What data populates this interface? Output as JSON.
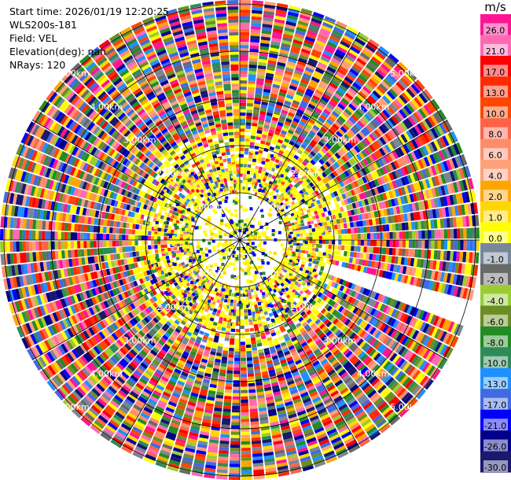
{
  "header": {
    "start_time": "Start time: 2026/01/19 12:20:25",
    "instrument": "WLS200s-181",
    "field": "Field: VEL",
    "elevation": "Elevation(deg): nan",
    "nrays": "NRays: 120"
  },
  "chart_data": {
    "type": "heatmap",
    "projection": "polar (PPI scan)",
    "field": "VEL",
    "rays": 120,
    "range_ring_labels": [
      "1.00km",
      "2.00km",
      "3.00km",
      "4.00km",
      "5.00km"
    ],
    "range_rings_km": [
      1,
      2,
      3,
      4,
      5
    ],
    "colorbar": {
      "unit": "m/s",
      "tick_labels": [
        "26.0",
        "21.0",
        "17.0",
        "13.0",
        "10.0",
        "8.0",
        "6.0",
        "4.0",
        "2.0",
        "1.0",
        "0.0",
        "-1.0",
        "-2.0",
        "-4.0",
        "-6.0",
        "-8.0",
        "-10.0",
        "-13.0",
        "-17.0",
        "-21.0",
        "-26.0",
        "-30.0"
      ],
      "colors": [
        "#ff1493",
        "#ff69b4",
        "#ff0000",
        "#ff2a00",
        "#ff4500",
        "#ff6347",
        "#ff8c69",
        "#ffa07a",
        "#ffa500",
        "#ffd700",
        "#ffff00",
        "#778899",
        "#696969",
        "#9acd32",
        "#6b8e23",
        "#228b22",
        "#2e8b57",
        "#1e90ff",
        "#4169e1",
        "#0000ff",
        "#00008b",
        "#191970"
      ]
    }
  }
}
